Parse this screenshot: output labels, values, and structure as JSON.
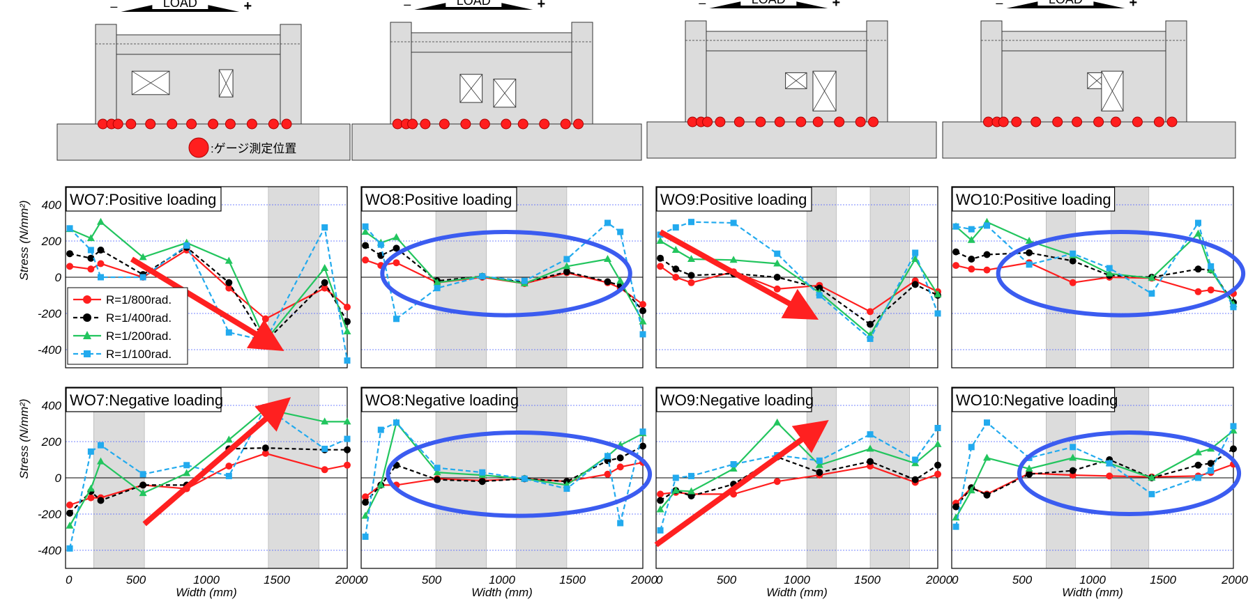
{
  "load_label": "LOAD",
  "minus": "–",
  "plus": "+",
  "gauge_legend": ":ゲージ測定位置",
  "colors": {
    "r800": "#ff1e1e",
    "r400": "#000000",
    "r200": "#22c55e",
    "r100": "#22aaee",
    "highlight_ellipse": "#3b5cf0",
    "highlight_arrow": "#ff2020",
    "opening_band": "#dcdcdc",
    "specimen_fill": "#dcdcdc",
    "gauge_dot": "#ff1e1e"
  },
  "common": {
    "ylabel": "Stress (N/mm²)",
    "xlabel": "Width (mm)",
    "yticks": [
      "400",
      "200",
      "0",
      "-200",
      "-400"
    ],
    "xticks": [
      "0",
      "500",
      "1000",
      "1500",
      "2000"
    ]
  },
  "series_names": [
    "R=1/800rad.",
    "R=1/400rad.",
    "R=1/200rad.",
    "R=1/100rad."
  ],
  "chart_data": [
    {
      "type": "line",
      "title": "WO7:Positive loading",
      "xlim": [
        0,
        2000
      ],
      "ylim": [
        -500,
        500
      ],
      "openings": [
        [
          1440,
          1800
        ]
      ],
      "arrow": {
        "from": [
          470,
          100
        ],
        "to": [
          1450,
          -360
        ]
      },
      "series": [
        {
          "name": "R=1/800rad.",
          "x": [
            30,
            180,
            250,
            550,
            860,
            1160,
            1420,
            1840,
            2000
          ],
          "y": [
            60,
            45,
            75,
            0,
            150,
            -60,
            -230,
            -60,
            -165
          ]
        },
        {
          "name": "R=1/400rad.",
          "x": [
            30,
            180,
            250,
            550,
            860,
            1160,
            1420,
            1840,
            2000
          ],
          "y": [
            130,
            105,
            150,
            15,
            165,
            -30,
            -355,
            -30,
            -245
          ]
        },
        {
          "name": "R=1/200rad.",
          "x": [
            30,
            180,
            250,
            550,
            860,
            1160,
            1420,
            1840,
            2000
          ],
          "y": [
            265,
            215,
            305,
            110,
            190,
            90,
            -350,
            50,
            -300
          ]
        },
        {
          "name": "R=1/100rad.",
          "x": [
            30,
            180,
            250,
            550,
            860,
            1160,
            1420,
            1840,
            2000
          ],
          "y": [
            270,
            150,
            0,
            0,
            175,
            -305,
            -350,
            275,
            -460
          ]
        }
      ]
    },
    {
      "type": "line",
      "title": "WO8:Positive loading",
      "xlim": [
        0,
        2000
      ],
      "ylim": [
        -500,
        500
      ],
      "openings": [
        [
          530,
          890
        ],
        [
          1100,
          1460
        ]
      ],
      "ellipse": {
        "cx": 1030,
        "cy": 20,
        "rx": 880,
        "ry": 230
      },
      "series": [
        {
          "name": "R=1/800rad.",
          "x": [
            30,
            140,
            250,
            540,
            860,
            1160,
            1460,
            1750,
            1840,
            2000
          ],
          "y": [
            95,
            65,
            80,
            -30,
            0,
            -35,
            25,
            -30,
            -60,
            -150
          ]
        },
        {
          "name": "R=1/400rad.",
          "x": [
            30,
            140,
            250,
            540,
            860,
            1160,
            1460,
            1750,
            1840,
            2000
          ],
          "y": [
            175,
            120,
            160,
            -20,
            5,
            -30,
            30,
            -25,
            -45,
            -185
          ]
        },
        {
          "name": "R=1/200rad.",
          "x": [
            30,
            140,
            250,
            540,
            860,
            1160,
            1460,
            1750,
            1840,
            2000
          ],
          "y": [
            250,
            190,
            220,
            -30,
            5,
            -35,
            60,
            100,
            -20,
            -245
          ]
        },
        {
          "name": "R=1/100rad.",
          "x": [
            30,
            140,
            250,
            540,
            860,
            1160,
            1460,
            1750,
            1840,
            2000
          ],
          "y": [
            280,
            180,
            -230,
            -60,
            5,
            -20,
            100,
            300,
            250,
            -315
          ]
        }
      ]
    },
    {
      "type": "line",
      "title": "WO9:Positive loading",
      "xlim": [
        0,
        2000
      ],
      "ylim": [
        -500,
        500
      ],
      "openings": [
        [
          1070,
          1280
        ],
        [
          1520,
          1800
        ]
      ],
      "arrow": {
        "from": [
          30,
          250
        ],
        "to": [
          1050,
          -190
        ]
      },
      "series": [
        {
          "name": "R=1/800rad.",
          "x": [
            30,
            140,
            250,
            550,
            860,
            1160,
            1520,
            1840,
            2000
          ],
          "y": [
            60,
            0,
            -30,
            30,
            -65,
            -45,
            -190,
            -20,
            -80
          ]
        },
        {
          "name": "R=1/400rad.",
          "x": [
            30,
            140,
            250,
            550,
            860,
            1160,
            1520,
            1840,
            2000
          ],
          "y": [
            105,
            45,
            10,
            20,
            0,
            -60,
            -260,
            -40,
            -100
          ]
        },
        {
          "name": "R=1/200rad.",
          "x": [
            30,
            140,
            250,
            550,
            860,
            1160,
            1520,
            1840,
            2000
          ],
          "y": [
            200,
            150,
            100,
            95,
            75,
            -85,
            -320,
            100,
            -95
          ]
        },
        {
          "name": "R=1/100rad.",
          "x": [
            30,
            140,
            250,
            550,
            860,
            1160,
            1520,
            1840,
            2000
          ],
          "y": [
            235,
            275,
            305,
            300,
            130,
            -100,
            -340,
            135,
            -200
          ]
        }
      ]
    },
    {
      "type": "line",
      "title": "WO10:Positive loading",
      "xlim": [
        0,
        2000
      ],
      "ylim": [
        -500,
        500
      ],
      "openings": [
        [
          670,
          880
        ],
        [
          1130,
          1400
        ]
      ],
      "ellipse": {
        "cx": 1200,
        "cy": 20,
        "rx": 870,
        "ry": 230
      },
      "series": [
        {
          "name": "R=1/800rad.",
          "x": [
            30,
            140,
            250,
            550,
            860,
            1120,
            1420,
            1750,
            1840,
            2000
          ],
          "y": [
            65,
            45,
            40,
            80,
            -30,
            0,
            -5,
            -80,
            -70,
            -90
          ]
        },
        {
          "name": "R=1/400rad.",
          "x": [
            30,
            140,
            250,
            550,
            860,
            1120,
            1420,
            1750,
            1840,
            2000
          ],
          "y": [
            140,
            100,
            125,
            135,
            90,
            10,
            0,
            45,
            40,
            -140
          ]
        },
        {
          "name": "R=1/200rad.",
          "x": [
            30,
            140,
            250,
            550,
            860,
            1120,
            1420,
            1750,
            1840,
            2000
          ],
          "y": [
            280,
            205,
            305,
            200,
            120,
            20,
            -5,
            240,
            40,
            -150
          ]
        },
        {
          "name": "R=1/100rad.",
          "x": [
            30,
            140,
            250,
            550,
            860,
            1120,
            1420,
            1750,
            1840,
            2000
          ],
          "y": [
            280,
            265,
            285,
            70,
            130,
            50,
            -90,
            300,
            60,
            -165
          ]
        }
      ]
    },
    {
      "type": "line",
      "title": "WO7:Negative loading",
      "xlim": [
        0,
        2000
      ],
      "ylim": [
        -500,
        500
      ],
      "openings": [
        [
          200,
          560
        ],
        [
          1440,
          1800
        ]
      ],
      "arrow": {
        "from": [
          560,
          -255
        ],
        "to": [
          1510,
          385
        ]
      },
      "series": [
        {
          "name": "R=1/800rad.",
          "x": [
            30,
            180,
            250,
            550,
            860,
            1160,
            1420,
            1840,
            2000
          ],
          "y": [
            -150,
            -110,
            -110,
            -40,
            -60,
            65,
            135,
            45,
            70
          ]
        },
        {
          "name": "R=1/400rad.",
          "x": [
            30,
            180,
            250,
            550,
            860,
            1160,
            1420,
            1840,
            2000
          ],
          "y": [
            -195,
            -75,
            -125,
            -40,
            -40,
            160,
            165,
            155,
            155
          ]
        },
        {
          "name": "R=1/200rad.",
          "x": [
            30,
            180,
            250,
            550,
            860,
            1160,
            1420,
            1840,
            2000
          ],
          "y": [
            -265,
            -60,
            90,
            -85,
            25,
            210,
            380,
            310,
            310
          ]
        },
        {
          "name": "R=1/100rad.",
          "x": [
            30,
            180,
            250,
            550,
            860,
            1160,
            1420,
            1840,
            2000
          ],
          "y": [
            -390,
            145,
            180,
            20,
            70,
            10,
            390,
            160,
            215
          ]
        }
      ]
    },
    {
      "type": "line",
      "title": "WO8:Negative loading",
      "xlim": [
        0,
        2000
      ],
      "ylim": [
        -500,
        500
      ],
      "openings": [
        [
          530,
          890
        ],
        [
          1100,
          1460
        ]
      ],
      "ellipse": {
        "cx": 1120,
        "cy": 20,
        "rx": 930,
        "ry": 230
      },
      "series": [
        {
          "name": "R=1/800rad.",
          "x": [
            30,
            140,
            250,
            540,
            860,
            1160,
            1460,
            1750,
            1840,
            2000
          ],
          "y": [
            -105,
            -40,
            -40,
            -5,
            -15,
            -5,
            -20,
            20,
            60,
            85
          ]
        },
        {
          "name": "R=1/400rad.",
          "x": [
            30,
            140,
            250,
            540,
            860,
            1160,
            1460,
            1750,
            1840,
            2000
          ],
          "y": [
            -135,
            -40,
            70,
            -10,
            -20,
            -5,
            -20,
            95,
            110,
            175
          ]
        },
        {
          "name": "R=1/200rad.",
          "x": [
            30,
            140,
            250,
            540,
            860,
            1160,
            1460,
            1750,
            1840,
            2000
          ],
          "y": [
            -210,
            -40,
            305,
            30,
            15,
            -5,
            -40,
            120,
            180,
            245
          ]
        },
        {
          "name": "R=1/100rad.",
          "x": [
            30,
            140,
            250,
            540,
            860,
            1160,
            1460,
            1750,
            1840,
            2000
          ],
          "y": [
            -325,
            265,
            305,
            55,
            30,
            -5,
            -60,
            120,
            -250,
            255
          ]
        }
      ]
    },
    {
      "type": "line",
      "title": "WO9:Negative loading",
      "xlim": [
        0,
        2000
      ],
      "ylim": [
        -500,
        500
      ],
      "openings": [
        [
          1070,
          1280
        ],
        [
          1520,
          1800
        ]
      ],
      "arrow": {
        "from": [
          0,
          -370
        ],
        "to": [
          1130,
          265
        ]
      },
      "series": [
        {
          "name": "R=1/800rad.",
          "x": [
            30,
            140,
            250,
            550,
            860,
            1160,
            1520,
            1840,
            2000
          ],
          "y": [
            -90,
            -80,
            -90,
            -90,
            -20,
            15,
            65,
            -25,
            20
          ]
        },
        {
          "name": "R=1/400rad.",
          "x": [
            30,
            140,
            250,
            550,
            860,
            1160,
            1520,
            1840,
            2000
          ],
          "y": [
            -125,
            -70,
            -100,
            -35,
            115,
            30,
            90,
            -10,
            70
          ]
        },
        {
          "name": "R=1/200rad.",
          "x": [
            30,
            140,
            250,
            550,
            860,
            1160,
            1520,
            1840,
            2000
          ],
          "y": [
            -175,
            -70,
            -75,
            50,
            305,
            70,
            160,
            80,
            185
          ]
        },
        {
          "name": "R=1/100rad.",
          "x": [
            30,
            140,
            250,
            550,
            860,
            1160,
            1520,
            1840,
            2000
          ],
          "y": [
            -290,
            0,
            10,
            75,
            125,
            95,
            240,
            100,
            275
          ]
        }
      ]
    },
    {
      "type": "line",
      "title": "WO10:Negative loading",
      "xlim": [
        0,
        2000
      ],
      "ylim": [
        -500,
        500
      ],
      "openings": [
        [
          670,
          880
        ],
        [
          1130,
          1400
        ]
      ],
      "ellipse": {
        "cx": 1260,
        "cy": 25,
        "rx": 780,
        "ry": 225
      },
      "series": [
        {
          "name": "R=1/800rad.",
          "x": [
            30,
            140,
            250,
            550,
            860,
            1120,
            1420,
            1750,
            1840,
            2000
          ],
          "y": [
            -140,
            -55,
            -90,
            25,
            15,
            10,
            5,
            10,
            30,
            75
          ]
        },
        {
          "name": "R=1/400rad.",
          "x": [
            30,
            140,
            250,
            550,
            860,
            1120,
            1420,
            1750,
            1840,
            2000
          ],
          "y": [
            -160,
            -55,
            -95,
            20,
            40,
            100,
            0,
            70,
            80,
            160
          ]
        },
        {
          "name": "R=1/200rad.",
          "x": [
            30,
            140,
            250,
            550,
            860,
            1120,
            1420,
            1750,
            1840,
            2000
          ],
          "y": [
            -220,
            -70,
            110,
            50,
            110,
            80,
            0,
            140,
            160,
            260
          ]
        },
        {
          "name": "R=1/100rad.",
          "x": [
            30,
            140,
            250,
            550,
            860,
            1120,
            1420,
            1750,
            1840,
            2000
          ],
          "y": [
            -270,
            170,
            305,
            110,
            170,
            80,
            -90,
            0,
            40,
            285
          ]
        }
      ]
    }
  ],
  "specimens": [
    {
      "openings": [
        [
          0.1,
          0.48,
          0.22,
          0.34
        ],
        [
          0.66,
          0.8,
          0.2,
          0.34
        ]
      ],
      "gauges": [
        0.05,
        0.09,
        0.12,
        0.18,
        0.27,
        0.37,
        0.46,
        0.56,
        0.64,
        0.74,
        0.84,
        0.9
      ]
    },
    {
      "openings": [
        [
          0.32,
          0.55,
          0.28,
          0.42
        ],
        [
          0.54,
          0.77,
          0.34,
          0.48
        ]
      ],
      "gauges": [
        0.05,
        0.09,
        0.12,
        0.18,
        0.27,
        0.37,
        0.46,
        0.56,
        0.64,
        0.74,
        0.84,
        0.9
      ]
    },
    {
      "openings": [
        [
          0.52,
          0.74,
          0.28,
          0.36
        ],
        [
          0.7,
          0.94,
          0.26,
          0.46
        ]
      ],
      "gauges": [
        0.05,
        0.09,
        0.12,
        0.18,
        0.27,
        0.37,
        0.46,
        0.56,
        0.64,
        0.74,
        0.84,
        0.9
      ]
    },
    {
      "openings": [
        [
          0.55,
          0.74,
          0.28,
          0.36
        ],
        [
          0.64,
          0.86,
          0.26,
          0.46
        ]
      ],
      "gauges": [
        0.05,
        0.09,
        0.12,
        0.18,
        0.27,
        0.37,
        0.46,
        0.56,
        0.64,
        0.74,
        0.84,
        0.9
      ]
    }
  ]
}
